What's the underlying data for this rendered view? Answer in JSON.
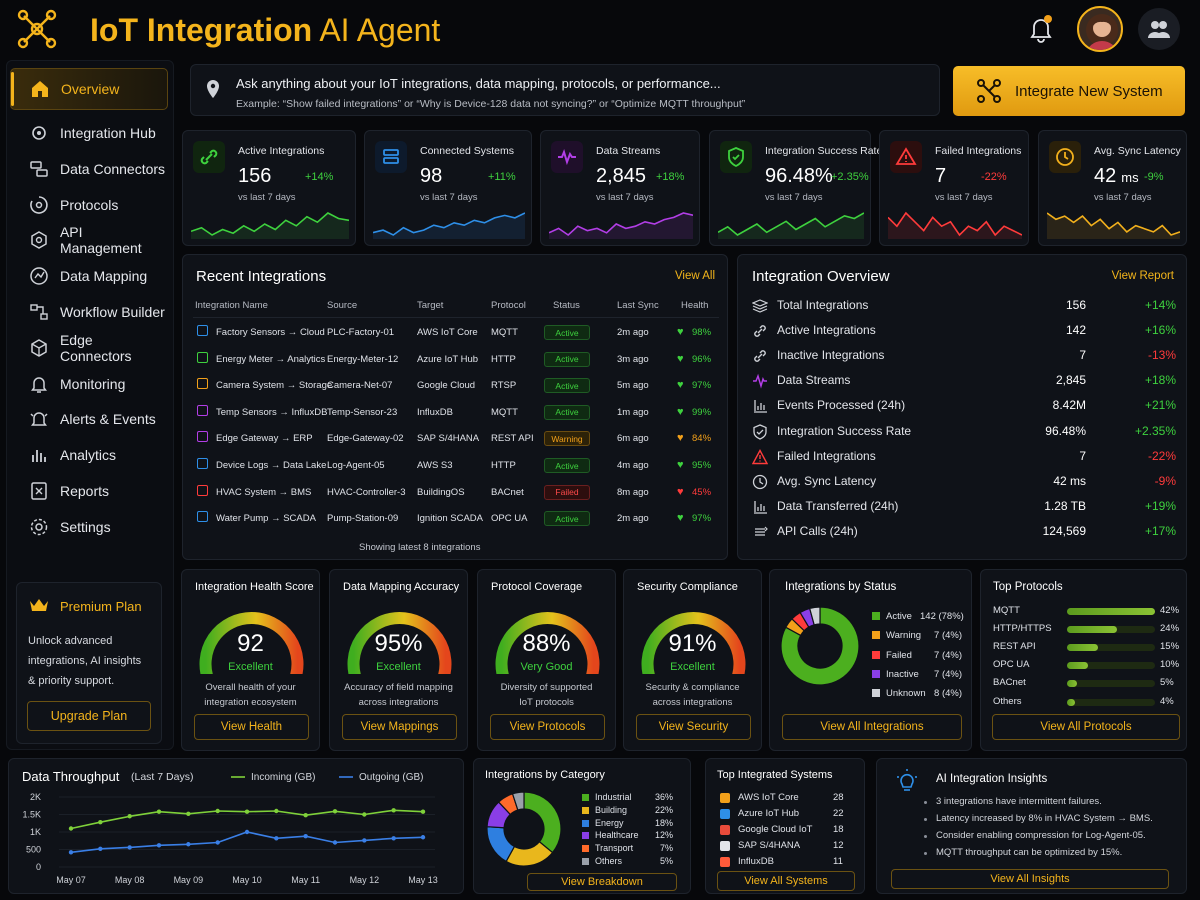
{
  "header": {
    "title_main": "IoT Integration",
    "title_rest": " AI Agent"
  },
  "sidebar": {
    "items": [
      {
        "label": "Overview",
        "icon": "home-icon"
      },
      {
        "label": "Integration Hub",
        "icon": "hub-icon"
      },
      {
        "label": "Data Connectors",
        "icon": "connector-icon"
      },
      {
        "label": "Protocols",
        "icon": "protocol-icon"
      },
      {
        "label": "API Management",
        "icon": "api-icon"
      },
      {
        "label": "Data Mapping",
        "icon": "mapping-icon"
      },
      {
        "label": "Workflow Builder",
        "icon": "workflow-icon"
      },
      {
        "label": "Edge Connectors",
        "icon": "edge-icon"
      },
      {
        "label": "Monitoring",
        "icon": "bell-icon"
      },
      {
        "label": "Alerts & Events",
        "icon": "alert-icon"
      },
      {
        "label": "Analytics",
        "icon": "analytics-icon"
      },
      {
        "label": "Reports",
        "icon": "reports-icon"
      },
      {
        "label": "Settings",
        "icon": "gear-icon"
      }
    ],
    "premium": {
      "title": "Premium Plan",
      "desc1": "Unlock advanced",
      "desc2": "integrations, AI insights",
      "desc3": "& priority support.",
      "button": "Upgrade Plan"
    }
  },
  "search": {
    "prompt": "Ask anything about your IoT integrations, data mapping, protocols, or performance...",
    "example": "Example: “Show failed integrations” or “Why is Device-128 data not syncing?” or “Optimize MQTT throughput”"
  },
  "cta": {
    "label": "Integrate New System"
  },
  "kpis": [
    {
      "label": "Active Integrations",
      "value": "156",
      "change": "+14%",
      "sub": "vs last 7 days",
      "color": "#3ed13e"
    },
    {
      "label": "Connected Systems",
      "value": "98",
      "change": "+11%",
      "sub": "vs last 7 days",
      "color": "#2e8fe8"
    },
    {
      "label": "Data Streams",
      "value": "2,845",
      "change": "+18%",
      "sub": "vs last 7 days",
      "color": "#b23ee6"
    },
    {
      "label": "Integration Success Rate",
      "value": "96.48%",
      "change": "+2.35%",
      "sub": "vs last 7 days",
      "color": "#3ed13e"
    },
    {
      "label": "Failed Integrations",
      "value": "7",
      "change": "-22%",
      "sub": "vs last 7 days",
      "color": "#ff3b3b"
    },
    {
      "label": "Avg. Sync Latency",
      "value": "42",
      "unit": "ms",
      "change": "-9%",
      "sub": "vs last 7 days",
      "color": "#f2b01c"
    }
  ],
  "recent": {
    "title": "Recent Integrations",
    "view_all": "View All",
    "columns": [
      "Integration Name",
      "Source",
      "Target",
      "Protocol",
      "Status",
      "Last Sync",
      "Health"
    ],
    "rows": [
      {
        "name": "Factory Sensors → Cloud",
        "source": "PLC-Factory-01",
        "target": "AWS IoT Core",
        "protocol": "MQTT",
        "status": "Active",
        "sync": "2m ago",
        "health": "98%",
        "icon_color": "#2e8fe8"
      },
      {
        "name": "Energy Meter → Analytics",
        "source": "Energy-Meter-12",
        "target": "Azure IoT Hub",
        "protocol": "HTTP",
        "status": "Active",
        "sync": "3m ago",
        "health": "96%",
        "icon_color": "#3ed13e"
      },
      {
        "name": "Camera System → Storage",
        "source": "Camera-Net-07",
        "target": "Google Cloud",
        "protocol": "RTSP",
        "status": "Active",
        "sync": "5m ago",
        "health": "97%",
        "icon_color": "#f2a01a"
      },
      {
        "name": "Temp Sensors → InfluxDB",
        "source": "Temp-Sensor-23",
        "target": "InfluxDB",
        "protocol": "MQTT",
        "status": "Active",
        "sync": "1m ago",
        "health": "99%",
        "icon_color": "#b23ee6"
      },
      {
        "name": "Edge Gateway → ERP",
        "source": "Edge-Gateway-02",
        "target": "SAP S/4HANA",
        "protocol": "REST API",
        "status": "Warning",
        "sync": "6m ago",
        "health": "84%",
        "icon_color": "#b23ee6"
      },
      {
        "name": "Device Logs → Data Lake",
        "source": "Log-Agent-05",
        "target": "AWS S3",
        "protocol": "HTTP",
        "status": "Active",
        "sync": "4m ago",
        "health": "95%",
        "icon_color": "#2e8fe8"
      },
      {
        "name": "HVAC System → BMS",
        "source": "HVAC-Controller-3",
        "target": "BuildingOS",
        "protocol": "BACnet",
        "status": "Failed",
        "sync": "8m ago",
        "health": "45%",
        "icon_color": "#ff3b3b"
      },
      {
        "name": "Water Pump → SCADA",
        "source": "Pump-Station-09",
        "target": "Ignition SCADA",
        "protocol": "OPC UA",
        "status": "Active",
        "sync": "2m ago",
        "health": "97%",
        "icon_color": "#2e8fe8"
      }
    ],
    "footer": "Showing latest 8 integrations"
  },
  "overview": {
    "title": "Integration Overview",
    "view_report": "View Report",
    "rows": [
      {
        "label": "Total Integrations",
        "value": "156",
        "change": "+14%",
        "icon": "stack-icon"
      },
      {
        "label": "Active Integrations",
        "value": "142",
        "change": "+16%",
        "icon": "link-icon"
      },
      {
        "label": "Inactive Integrations",
        "value": "7",
        "change": "-13%",
        "icon": "link-icon"
      },
      {
        "label": "Data Streams",
        "value": "2,845",
        "change": "+18%",
        "icon": "pulse-icon"
      },
      {
        "label": "Events Processed (24h)",
        "value": "8.42M",
        "change": "+21%",
        "icon": "chart-icon"
      },
      {
        "label": "Integration Success Rate",
        "value": "96.48%",
        "change": "+2.35%",
        "icon": "shield-check-icon"
      },
      {
        "label": "Failed Integrations",
        "value": "7",
        "change": "-22%",
        "icon": "warning-icon"
      },
      {
        "label": "Avg. Sync Latency",
        "value": "42 ms",
        "change": "-9%",
        "icon": "clock-icon"
      },
      {
        "label": "Data Transferred (24h)",
        "value": "1.28 TB",
        "change": "+19%",
        "icon": "chart-icon"
      },
      {
        "label": "API Calls (24h)",
        "value": "124,569",
        "change": "+17%",
        "icon": "api-icon"
      }
    ]
  },
  "gauges": [
    {
      "title": "Integration Health Score",
      "value": "92",
      "level": 0.92,
      "rating": "Excellent",
      "desc1": "Overall health of your",
      "desc2": "integration ecosystem",
      "button": "View Health",
      "rating_color": "#3ed13e"
    },
    {
      "title": "Data Mapping Accuracy",
      "value": "95%",
      "level": 0.95,
      "rating": "Excellent",
      "desc1": "Accuracy of field mapping",
      "desc2": "across integrations",
      "button": "View Mappings",
      "rating_color": "#3ed13e"
    },
    {
      "title": "Protocol Coverage",
      "value": "88%",
      "level": 0.88,
      "rating": "Very Good",
      "desc1": "Diversity of supported",
      "desc2": "IoT protocols",
      "button": "View Protocols",
      "rating_color": "#3ed13e"
    },
    {
      "title": "Security Compliance",
      "value": "91%",
      "level": 0.91,
      "rating": "Excellent",
      "desc1": "Security & compliance",
      "desc2": "across integrations",
      "button": "View Security",
      "rating_color": "#3ed13e"
    }
  ],
  "status_donut": {
    "title": "Integrations by Status",
    "items": [
      {
        "label": "Active",
        "value": "142 (78%)",
        "pct": 78,
        "color": "#4caf1f"
      },
      {
        "label": "Warning",
        "value": "7 (4%)",
        "pct": 4,
        "color": "#f2a01a"
      },
      {
        "label": "Failed",
        "value": "7 (4%)",
        "pct": 4,
        "color": "#ff3b3b"
      },
      {
        "label": "Inactive",
        "value": "7 (4%)",
        "pct": 4,
        "color": "#8a3ee6"
      },
      {
        "label": "Unknown",
        "value": "8 (4%)",
        "pct": 4,
        "color": "#cfd2d8"
      }
    ],
    "button": "View All Integrations"
  },
  "top_protocols": {
    "title": "Top Protocols",
    "items": [
      {
        "label": "MQTT",
        "value": "42%",
        "pct": 42
      },
      {
        "label": "HTTP/HTTPS",
        "value": "24%",
        "pct": 24
      },
      {
        "label": "REST API",
        "value": "15%",
        "pct": 15
      },
      {
        "label": "OPC UA",
        "value": "10%",
        "pct": 10
      },
      {
        "label": "BACnet",
        "value": "5%",
        "pct": 5
      },
      {
        "label": "Others",
        "value": "4%",
        "pct": 4
      }
    ],
    "button": "View All Protocols"
  },
  "premium_dummy": "",
  "chart_data": {
    "type": "line",
    "title": "Data Throughput",
    "subtitle": "(Last 7 Days)",
    "categories": [
      "May 07",
      "May 08",
      "May 09",
      "May 10",
      "May 11",
      "May 12",
      "May 13"
    ],
    "x": [
      "May 07",
      "May 07",
      "May 08",
      "May 08",
      "May 09",
      "May 09",
      "May 10",
      "May 10",
      "May 11",
      "May 11",
      "May 12",
      "May 12",
      "May 13"
    ],
    "series": [
      {
        "name": "Incoming (GB)",
        "color": "#7fd13a",
        "values": [
          1100,
          1280,
          1450,
          1580,
          1520,
          1600,
          1580,
          1600,
          1480,
          1590,
          1500,
          1620,
          1580
        ]
      },
      {
        "name": "Outgoing (GB)",
        "color": "#3a7fe6",
        "values": [
          420,
          520,
          560,
          620,
          650,
          700,
          1000,
          820,
          880,
          700,
          760,
          820,
          850
        ]
      }
    ],
    "yticks": [
      "0",
      "500",
      "1K",
      "1.5K",
      "2K"
    ],
    "ylim": [
      0,
      2000
    ],
    "grid": true,
    "legend": "top"
  },
  "category_donut": {
    "title": "Integrations by Category",
    "items": [
      {
        "label": "Industrial",
        "value": "36%",
        "pct": 36,
        "color": "#4caf1f"
      },
      {
        "label": "Building",
        "value": "22%",
        "pct": 22,
        "color": "#e9b71c"
      },
      {
        "label": "Energy",
        "value": "18%",
        "pct": 18,
        "color": "#2e7fe0"
      },
      {
        "label": "Healthcare",
        "value": "12%",
        "pct": 12,
        "color": "#8a3ee6"
      },
      {
        "label": "Transport",
        "value": "7%",
        "pct": 7,
        "color": "#ff6a2a"
      },
      {
        "label": "Others",
        "value": "5%",
        "pct": 5,
        "color": "#9aa0aa"
      }
    ],
    "button": "View Breakdown"
  },
  "top_systems": {
    "title": "Top Integrated Systems",
    "items": [
      {
        "label": "AWS IoT Core",
        "value": "28",
        "color": "#f2a01a"
      },
      {
        "label": "Azure IoT Hub",
        "value": "22",
        "color": "#2e8fe8"
      },
      {
        "label": "Google Cloud IoT",
        "value": "18",
        "color": "#e94b3b"
      },
      {
        "label": "SAP S/4HANA",
        "value": "12",
        "color": "#e3e5ea"
      },
      {
        "label": "InfluxDB",
        "value": "11",
        "color": "#ff5a3a"
      }
    ],
    "button": "View All Systems"
  },
  "insights": {
    "title": "AI Integration Insights",
    "items": [
      "3 integrations have intermittent failures.",
      "Latency increased by 8% in HVAC System → BMS.",
      "Consider enabling compression for Log-Agent-05.",
      "MQTT throughput can be optimized by 15%."
    ],
    "button": "View All Insights"
  }
}
